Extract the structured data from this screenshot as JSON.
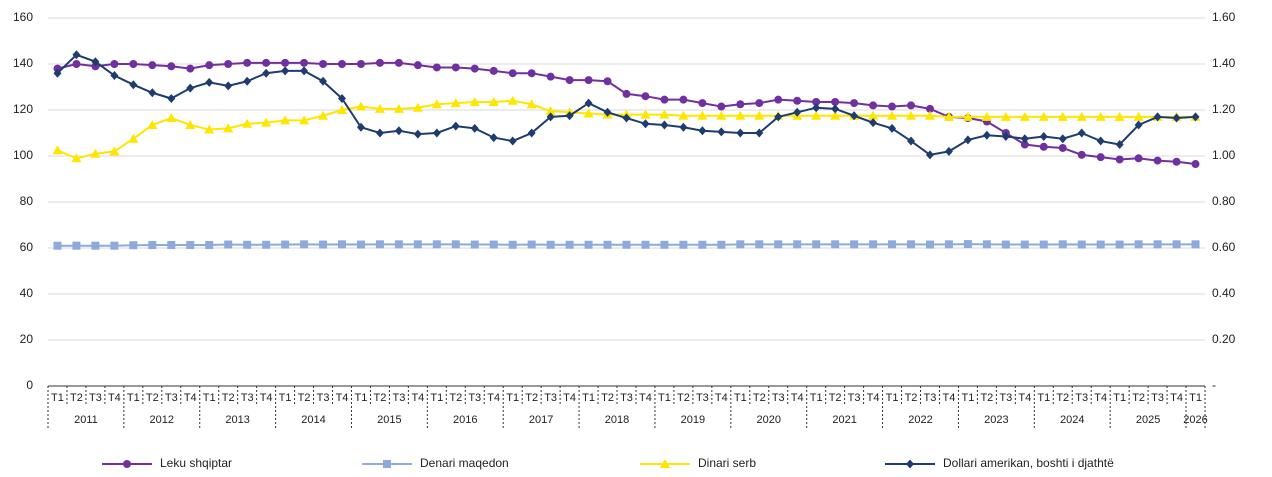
{
  "chart_data": {
    "type": "line",
    "categories": [
      "T1",
      "T2",
      "T3",
      "T4",
      "T1",
      "T2",
      "T3",
      "T4",
      "T1",
      "T2",
      "T3",
      "T4",
      "T1",
      "T2",
      "T3",
      "T4",
      "T1",
      "T2",
      "T3",
      "T4",
      "T1",
      "T2",
      "T3",
      "T4",
      "T1",
      "T2",
      "T3",
      "T4",
      "T1",
      "T2",
      "T3",
      "T4",
      "T1",
      "T2",
      "T3",
      "T4",
      "T1",
      "T2",
      "T3",
      "T4",
      "T1",
      "T2",
      "T3",
      "T4",
      "T1",
      "T2",
      "T3",
      "T4",
      "T1",
      "T2",
      "T3",
      "T4",
      "T1",
      "T2",
      "T3",
      "T4",
      "T1",
      "T2",
      "T3",
      "T4",
      "T1"
    ],
    "years": [
      "2011",
      "2012",
      "2013",
      "2014",
      "2015",
      "2016",
      "2017",
      "2018",
      "2019",
      "2020",
      "2021",
      "2022",
      "2023",
      "2024",
      "2025",
      "2026"
    ],
    "ylim": [
      0,
      160
    ],
    "yticks": [
      0,
      20,
      40,
      60,
      80,
      100,
      120,
      140,
      160
    ],
    "y2lim": [
      0,
      1.6
    ],
    "y2ticks": [
      {
        "value": 0,
        "label": "-"
      },
      {
        "value": 0.2,
        "label": "0.20"
      },
      {
        "value": 0.4,
        "label": "0.40"
      },
      {
        "value": 0.6,
        "label": "0.60"
      },
      {
        "value": 0.8,
        "label": "0.80"
      },
      {
        "value": 1,
        "label": "1.00"
      },
      {
        "value": 1.2,
        "label": "1.20"
      },
      {
        "value": 1.4,
        "label": "1.40"
      },
      {
        "value": 1.6,
        "label": "1.60"
      }
    ],
    "grid": true,
    "legend": "bottom",
    "series": [
      {
        "name": "Leku shqiptar",
        "color": "#7030a0",
        "marker": "circle",
        "values": [
          138,
          140,
          139,
          140,
          140,
          139.5,
          139,
          138,
          139.5,
          140,
          140.5,
          140.5,
          140.5,
          140.5,
          140,
          140,
          140,
          140.5,
          140.5,
          139.5,
          138.5,
          138.5,
          138,
          137,
          136,
          136,
          134.5,
          133,
          133,
          132.5,
          127,
          126,
          124.5,
          124.5,
          123,
          121.5,
          122.5,
          123,
          124.5,
          124,
          123.5,
          123.5,
          123,
          122,
          121.5,
          122,
          120.5,
          117,
          116.5,
          115,
          110,
          105,
          104,
          103.5,
          100.5,
          99.5,
          98.5,
          99,
          98,
          97.5,
          96.5
        ]
      },
      {
        "name": "Denari maqedon",
        "color": "#8eaadb",
        "marker": "square",
        "values": [
          61,
          61,
          61,
          61,
          61.2,
          61.3,
          61.3,
          61.3,
          61.3,
          61.5,
          61.4,
          61.4,
          61.5,
          61.6,
          61.5,
          61.6,
          61.5,
          61.6,
          61.6,
          61.6,
          61.6,
          61.6,
          61.5,
          61.5,
          61.4,
          61.5,
          61.4,
          61.4,
          61.4,
          61.4,
          61.4,
          61.4,
          61.4,
          61.4,
          61.4,
          61.4,
          61.6,
          61.6,
          61.6,
          61.6,
          61.6,
          61.6,
          61.6,
          61.6,
          61.6,
          61.6,
          61.5,
          61.6,
          61.7,
          61.6,
          61.5,
          61.5,
          61.5,
          61.6,
          61.5,
          61.5,
          61.5,
          61.6,
          61.6,
          61.6,
          61.6
        ]
      },
      {
        "name": "Dinari serb",
        "color": "#ffe600",
        "marker": "triangle",
        "values": [
          102.5,
          99,
          101,
          102,
          107.5,
          113.5,
          116.5,
          113.5,
          111.5,
          112,
          114,
          114.5,
          115.5,
          115.5,
          117.5,
          120,
          121.5,
          120.5,
          120.5,
          121,
          122.5,
          123,
          123.5,
          123.5,
          124,
          122.5,
          119.5,
          119,
          118.5,
          118,
          118,
          118,
          118,
          117.5,
          117.5,
          117.5,
          117.5,
          117.5,
          117.5,
          117.5,
          117.5,
          117.5,
          117.5,
          117.5,
          117.5,
          117.5,
          117.5,
          117,
          117,
          117,
          117,
          117,
          117,
          117,
          117,
          117,
          117,
          117,
          117,
          117,
          117
        ]
      },
      {
        "name": "Dollari amerikan, boshti i djathtë",
        "color": "#1f3c6e",
        "marker": "diamond",
        "axis": "y2",
        "values": [
          1.36,
          1.44,
          1.41,
          1.35,
          1.31,
          1.275,
          1.25,
          1.295,
          1.32,
          1.305,
          1.325,
          1.36,
          1.37,
          1.37,
          1.325,
          1.25,
          1.125,
          1.1,
          1.11,
          1.095,
          1.1,
          1.13,
          1.12,
          1.08,
          1.065,
          1.1,
          1.17,
          1.175,
          1.23,
          1.19,
          1.165,
          1.14,
          1.135,
          1.125,
          1.11,
          1.105,
          1.1,
          1.1,
          1.17,
          1.19,
          1.21,
          1.205,
          1.175,
          1.145,
          1.12,
          1.065,
          1.005,
          1.02,
          1.07,
          1.09,
          1.085,
          1.075,
          1.085,
          1.075,
          1.1,
          1.065,
          1.05,
          1.135,
          1.17,
          1.165,
          1.17
        ]
      }
    ]
  }
}
